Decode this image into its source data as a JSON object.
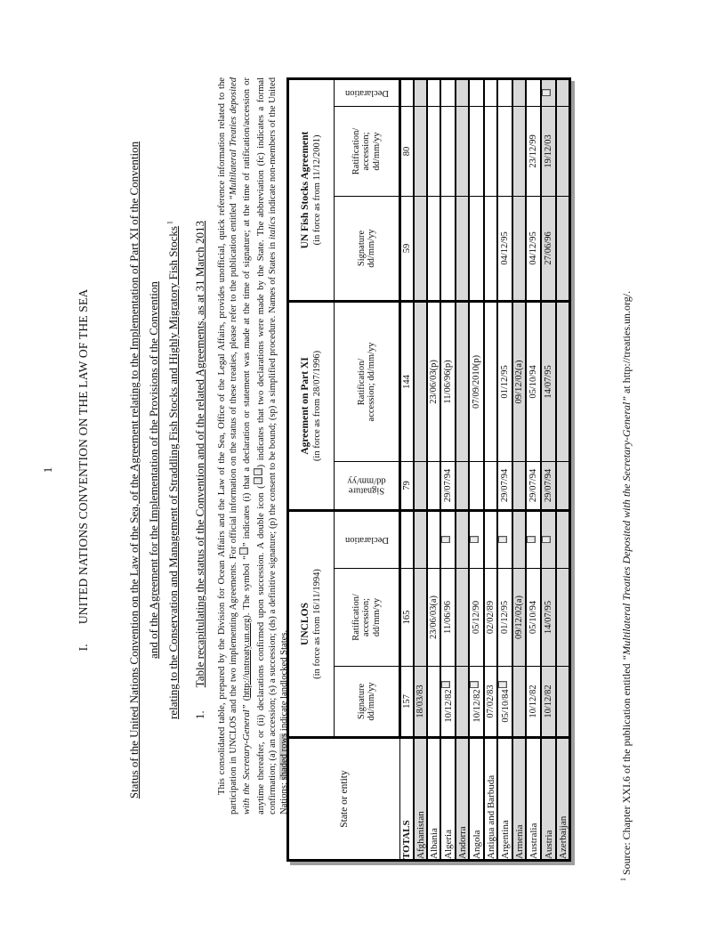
{
  "page": {
    "page_number": "1",
    "heading": {
      "num": "I.",
      "title": "UNITED NATIONS CONVENTION ON THE LAW OF THE SEA"
    },
    "subtitle_lines": [
      [
        {
          "t": "Status of the United Nations Convention on the Law of the Sea, of the Agreement relating to the Implementation of Part XI of the Convention",
          "s": "u"
        }
      ],
      [
        {
          "t": "and of the Agreement for the Implementation of the Provisions of the Convention",
          "s": "u"
        }
      ],
      [
        {
          "t": "relating to the Conservation and Management of Straddling Fish Stocks and Highly Migratory Fish Stocks",
          "s": "u"
        },
        {
          "t": " 1",
          "s": "sup"
        }
      ]
    ],
    "subsection": {
      "num": "1.",
      "title": "Table recapitulating the status of the Convention and of the related Agreements, as at 31 March 2013"
    },
    "notes_segments": [
      {
        "t": "This consolidated table, prepared by the Division for Ocean Affairs and the Law of the Sea, Office of the Legal Affairs, provides unofficial, quick reference information related to the participation in UNCLOS and the two implementing Agreements. For official information on the status of these treaties, please refer to the publication entitled "
      },
      {
        "t": "“Multilateral Treaties deposited with the Secretary-General”",
        "s": "i"
      },
      {
        "t": " ("
      },
      {
        "t": "http://untreaty.un.org",
        "s": "u"
      },
      {
        "t": ").  The symbol “"
      },
      {
        "icon": 1
      },
      {
        "t": "” indicates (i) that a declaration or statement was made at the time of signature; at the time of ratification/accession or anytime thereafter, or (ii) declarations confirmed upon succession.  A double icon ("
      },
      {
        "icon": 2
      },
      {
        "t": ") indicates that two declarations were made by the State.  The abbreviation (fc) indicates a formal confirmation; (a) an accession; (s) a succession; (ds) a definitive signature; (p) the consent to be bound; (sp) a simplified procedure.  Names of States in "
      },
      {
        "t": "italics",
        "s": "i"
      },
      {
        "t": " indicate non-members of the United Nations; "
      },
      {
        "t": "shaded rows",
        "s": "hl"
      },
      {
        "t": " indicate landlocked States."
      }
    ],
    "footnote_segments": [
      {
        "t": "1",
        "s": "sup"
      },
      {
        "t": " Source: Chapter XXI.6 of the publication entitled "
      },
      {
        "t": "“Multilateral Treaties Deposited with the Secretary-General”",
        "s": "i"
      },
      {
        "t": " at http://treaties.un.org/."
      }
    ]
  },
  "table": {
    "state_header": "State or entity",
    "groups": [
      {
        "title": "UNCLOS",
        "since": "(in force as from 16/11/1994)",
        "cols": [
          {
            "label": "Signature\ndd/mm/yy"
          },
          {
            "label": "Ratification/\naccession;\ndd/mm/yy"
          },
          {
            "label": "Declaration",
            "rot": true
          }
        ]
      },
      {
        "title": "Agreement on Part XI",
        "since": "(in force as from 28/07/1996)",
        "cols": [
          {
            "label": "Signature\ndd/mm/yy",
            "rot": true
          },
          {
            "label": "Ratification/\naccession; dd/mm/yy"
          }
        ]
      },
      {
        "title": "UN Fish Stocks Agreement",
        "since": "(in force as from 11/12/2001)",
        "cols": [
          {
            "label": "Signature\ndd/mm/yy"
          },
          {
            "label": "Ratification/\naccession;\ndd/mm/yy"
          },
          {
            "label": "Declaration",
            "rot": true
          }
        ]
      }
    ],
    "rows": [
      {
        "name": "TOTALS",
        "bold": true,
        "shaded": false,
        "cells": [
          "157",
          "165",
          "",
          "79",
          "144",
          "59",
          "80",
          ""
        ]
      },
      {
        "name": "Afghanistan",
        "bold": false,
        "shaded": true,
        "cells": [
          "18/03/83",
          "",
          "",
          "",
          "",
          "",
          "",
          ""
        ]
      },
      {
        "name": "Albania",
        "bold": false,
        "shaded": false,
        "cells": [
          "",
          "23/06/03(a)",
          "",
          "",
          "23/06/03(p)",
          "",
          "",
          ""
        ]
      },
      {
        "name": "Algeria",
        "bold": false,
        "shaded": false,
        "cells": [
          "10/12/82□",
          "11/06/96",
          "□",
          "29/07/94",
          "11/06/96(p)",
          "",
          "",
          ""
        ]
      },
      {
        "name": "Andorra",
        "bold": false,
        "shaded": true,
        "cells": [
          "",
          "",
          "",
          "",
          "",
          "",
          "",
          ""
        ]
      },
      {
        "name": "Angola",
        "bold": false,
        "shaded": false,
        "cells": [
          "10/12/82□",
          "05/12/90",
          "□",
          "",
          "07/09/2010(p)",
          "",
          "",
          ""
        ]
      },
      {
        "name": "Antigua and Barbuda",
        "bold": false,
        "shaded": false,
        "cells": [
          "07/02/83",
          "02/02/89",
          "",
          "",
          "",
          "",
          "",
          ""
        ]
      },
      {
        "name": "Argentina",
        "bold": false,
        "shaded": false,
        "cells": [
          "05/10/84□",
          "01/12/95",
          "□",
          "29/07/94",
          "01/12/95",
          "04/12/95",
          "",
          ""
        ]
      },
      {
        "name": "Armenia",
        "bold": false,
        "shaded": true,
        "cells": [
          "",
          "09/12/02(a)",
          "",
          "",
          "09/12/02(a)",
          "",
          "",
          ""
        ]
      },
      {
        "name": "Australia",
        "bold": false,
        "shaded": false,
        "cells": [
          "10/12/82",
          "05/10/94",
          "□",
          "29/07/94",
          "05/10/94",
          "04/12/95",
          "23/12/99",
          ""
        ]
      },
      {
        "name": "Austria",
        "bold": false,
        "shaded": true,
        "cells": [
          "10/12/82",
          "14/07/95",
          "□",
          "29/07/94",
          "14/07/95",
          "27/06/96",
          "19/12/03",
          "□"
        ]
      },
      {
        "name": "Azerbaijan",
        "bold": false,
        "shaded": true,
        "cells": [
          "",
          "",
          "",
          "",
          "",
          "",
          "",
          ""
        ]
      }
    ],
    "col_widths": {
      "state": 138,
      "data": [
        80,
        110,
        65,
        55,
        180,
        118,
        101,
        31
      ]
    }
  },
  "colors": {
    "shaded_row": "#d9d9d9",
    "border": "#000000",
    "shadow": "#9e9e9e",
    "note_highlight": "#c9c9c9"
  }
}
